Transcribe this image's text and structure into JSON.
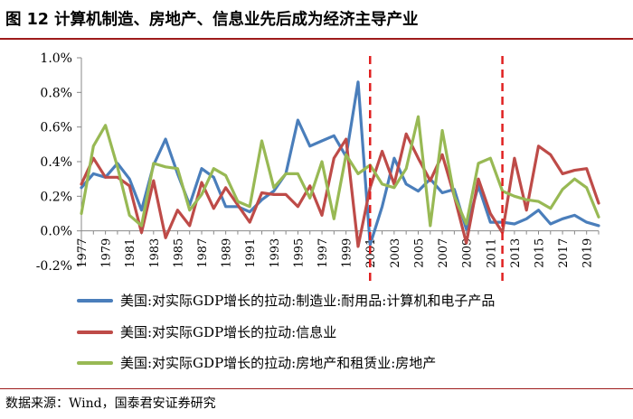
{
  "figure": {
    "title": "图 12  计算机制造、房地产、信息业先后成为经济主导产业",
    "source": "数据来源：Wind，国泰君安证券研究"
  },
  "colors": {
    "series": [
      "#4a7ebb",
      "#be4b48",
      "#98b954"
    ],
    "divider": "#e02020",
    "axis": "#888888",
    "rule": "#9e1b1b"
  },
  "chart_data": {
    "type": "line",
    "title": "",
    "xlabel": "",
    "ylabel": "",
    "ylim": [
      -0.2,
      1.0
    ],
    "yticks": [
      -0.2,
      0.0,
      0.2,
      0.4,
      0.6,
      0.8,
      1.0
    ],
    "ytick_labels": [
      "-0.2%",
      "0.0%",
      "0.2%",
      "0.4%",
      "0.6%",
      "0.8%",
      "1.0%"
    ],
    "grid": false,
    "legend_position": "bottom",
    "x": [
      1977,
      1978,
      1979,
      1980,
      1981,
      1982,
      1983,
      1984,
      1985,
      1986,
      1987,
      1988,
      1989,
      1990,
      1991,
      1992,
      1993,
      1994,
      1995,
      1996,
      1997,
      1998,
      1999,
      2000,
      2001,
      2002,
      2003,
      2004,
      2005,
      2006,
      2007,
      2008,
      2009,
      2010,
      2011,
      2012,
      2013,
      2014,
      2015,
      2016,
      2017,
      2018,
      2019,
      2020
    ],
    "xtick_labels": [
      "1977",
      "1979",
      "1981",
      "1983",
      "1985",
      "1987",
      "1989",
      "1991",
      "1993",
      "1995",
      "1997",
      "1999",
      "2001",
      "2003",
      "2005",
      "2007",
      "2009",
      "2011",
      "2013",
      "2015",
      "2017",
      "2019"
    ],
    "vertical_markers": [
      2001,
      2012
    ],
    "series": [
      {
        "name": "美国:对实际GDP增长的拉动:制造业:耐用品:计算机和电子产品",
        "values": [
          0.25,
          0.33,
          0.31,
          0.39,
          0.3,
          0.12,
          0.38,
          0.53,
          0.33,
          0.15,
          0.36,
          0.31,
          0.14,
          0.14,
          0.11,
          0.18,
          0.23,
          0.33,
          0.64,
          0.49,
          0.52,
          0.55,
          0.43,
          0.86,
          -0.08,
          0.14,
          0.42,
          0.27,
          0.23,
          0.3,
          0.22,
          0.24,
          0.01,
          0.26,
          0.05,
          0.05,
          0.04,
          0.07,
          0.12,
          0.04,
          0.07,
          0.09,
          0.05,
          0.03
        ]
      },
      {
        "name": "美国:对实际GDP增长的拉动:信息业",
        "values": [
          0.27,
          0.42,
          0.31,
          0.31,
          0.26,
          -0.01,
          0.29,
          -0.04,
          0.12,
          0.03,
          0.28,
          0.13,
          0.25,
          0.15,
          0.05,
          0.22,
          0.21,
          0.21,
          0.14,
          0.26,
          0.09,
          0.42,
          0.53,
          -0.09,
          0.25,
          0.46,
          0.27,
          0.56,
          0.42,
          0.29,
          0.44,
          0.2,
          -0.07,
          0.3,
          0.1,
          -0.01,
          0.42,
          0.12,
          0.49,
          0.44,
          0.33,
          0.35,
          0.36,
          0.16
        ]
      },
      {
        "name": "美国:对实际GDP增长的拉动:房地产和租赁业:房地产",
        "values": [
          0.1,
          0.49,
          0.61,
          0.37,
          0.09,
          0.03,
          0.39,
          0.37,
          0.36,
          0.12,
          0.21,
          0.36,
          0.32,
          0.17,
          0.14,
          0.52,
          0.25,
          0.33,
          0.33,
          0.19,
          0.4,
          0.07,
          0.44,
          0.33,
          0.38,
          0.27,
          0.25,
          0.36,
          0.66,
          0.03,
          0.58,
          0.2,
          0.04,
          0.39,
          0.42,
          0.23,
          0.2,
          0.18,
          0.17,
          0.13,
          0.24,
          0.3,
          0.25,
          0.08
        ]
      }
    ]
  }
}
